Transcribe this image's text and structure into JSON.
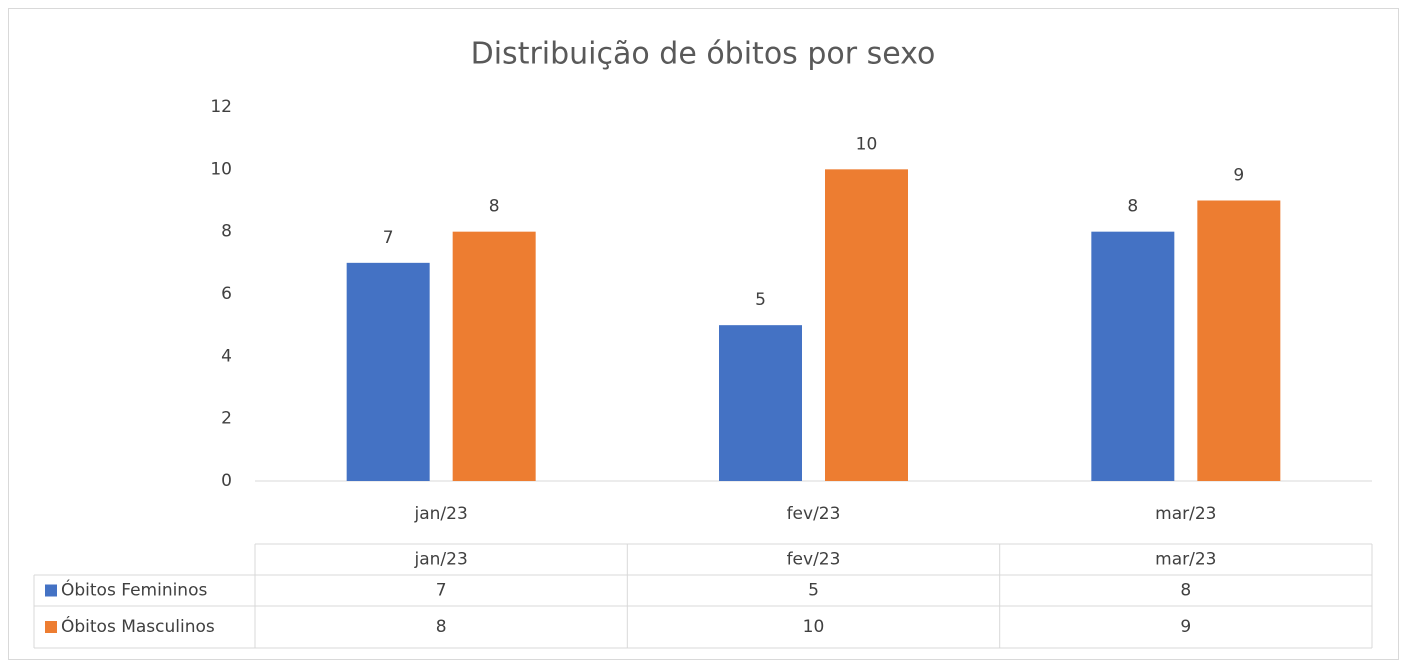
{
  "chart_data": {
    "type": "bar",
    "title": "Distribuição de óbitos por sexo",
    "categories": [
      "jan/23",
      "fev/23",
      "mar/23"
    ],
    "series": [
      {
        "name": "Óbitos Femininos",
        "color": "#4472c4",
        "values": [
          7,
          5,
          8
        ]
      },
      {
        "name": "Óbitos Masculinos",
        "color": "#ed7d31",
        "values": [
          8,
          10,
          9
        ]
      }
    ],
    "ylim": [
      0,
      12
    ],
    "yticks": [
      0,
      2,
      4,
      6,
      8,
      10,
      12
    ],
    "grid": false,
    "data_table": true
  }
}
